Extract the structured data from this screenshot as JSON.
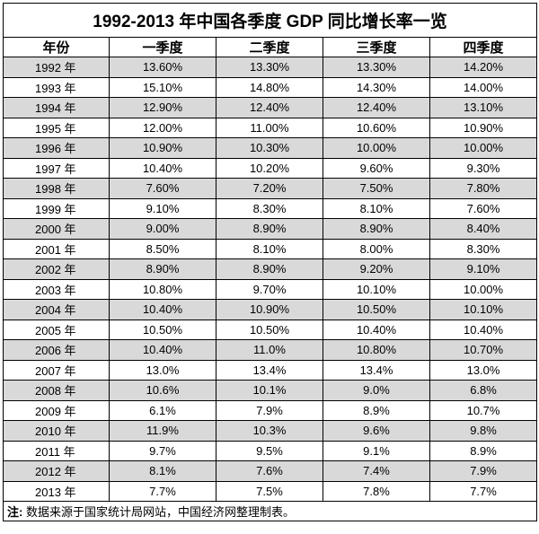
{
  "title": "1992-2013 年中国各季度 GDP 同比增长率一览",
  "columns": [
    "年份",
    "一季度",
    "二季度",
    "三季度",
    "四季度"
  ],
  "rows": [
    {
      "year": "1992 年",
      "q1": "13.60%",
      "q2": "13.30%",
      "q3": "13.30%",
      "q4": "14.20%"
    },
    {
      "year": "1993 年",
      "q1": "15.10%",
      "q2": "14.80%",
      "q3": "14.30%",
      "q4": "14.00%"
    },
    {
      "year": "1994 年",
      "q1": "12.90%",
      "q2": "12.40%",
      "q3": "12.40%",
      "q4": "13.10%"
    },
    {
      "year": "1995 年",
      "q1": "12.00%",
      "q2": "11.00%",
      "q3": "10.60%",
      "q4": "10.90%"
    },
    {
      "year": "1996 年",
      "q1": "10.90%",
      "q2": "10.30%",
      "q3": "10.00%",
      "q4": "10.00%"
    },
    {
      "year": "1997 年",
      "q1": "10.40%",
      "q2": "10.20%",
      "q3": "9.60%",
      "q4": "9.30%"
    },
    {
      "year": "1998 年",
      "q1": "7.60%",
      "q2": "7.20%",
      "q3": "7.50%",
      "q4": "7.80%"
    },
    {
      "year": "1999 年",
      "q1": "9.10%",
      "q2": "8.30%",
      "q3": "8.10%",
      "q4": "7.60%"
    },
    {
      "year": "2000 年",
      "q1": "9.00%",
      "q2": "8.90%",
      "q3": "8.90%",
      "q4": "8.40%"
    },
    {
      "year": "2001 年",
      "q1": "8.50%",
      "q2": "8.10%",
      "q3": "8.00%",
      "q4": "8.30%"
    },
    {
      "year": "2002 年",
      "q1": "8.90%",
      "q2": "8.90%",
      "q3": "9.20%",
      "q4": "9.10%"
    },
    {
      "year": "2003 年",
      "q1": "10.80%",
      "q2": "9.70%",
      "q3": "10.10%",
      "q4": "10.00%"
    },
    {
      "year": "2004 年",
      "q1": "10.40%",
      "q2": "10.90%",
      "q3": "10.50%",
      "q4": "10.10%"
    },
    {
      "year": "2005 年",
      "q1": "10.50%",
      "q2": "10.50%",
      "q3": "10.40%",
      "q4": "10.40%"
    },
    {
      "year": "2006 年",
      "q1": "10.40%",
      "q2": "11.0%",
      "q3": "10.80%",
      "q4": "10.70%"
    },
    {
      "year": "2007 年",
      "q1": "13.0%",
      "q2": "13.4%",
      "q3": "13.4%",
      "q4": "13.0%"
    },
    {
      "year": "2008 年",
      "q1": "10.6%",
      "q2": "10.1%",
      "q3": "9.0%",
      "q4": "6.8%"
    },
    {
      "year": "2009 年",
      "q1": "6.1%",
      "q2": "7.9%",
      "q3": "8.9%",
      "q4": "10.7%"
    },
    {
      "year": "2010 年",
      "q1": "11.9%",
      "q2": "10.3%",
      "q3": "9.6%",
      "q4": "9.8%"
    },
    {
      "year": "2011 年",
      "q1": "9.7%",
      "q2": "9.5%",
      "q3": "9.1%",
      "q4": "8.9%"
    },
    {
      "year": "2012 年",
      "q1": "8.1%",
      "q2": "7.6%",
      "q3": "7.4%",
      "q4": "7.9%"
    },
    {
      "year": "2013 年",
      "q1": "7.7%",
      "q2": "7.5%",
      "q3": "7.8%",
      "q4": "7.7%"
    }
  ],
  "note": {
    "label": "注:",
    "text": "数据来源于国家统计局网站，中国经济网整理制表。"
  },
  "colors": {
    "shaded_row": "#d9d9d9",
    "plain_row": "#ffffff",
    "border": "#000000"
  }
}
